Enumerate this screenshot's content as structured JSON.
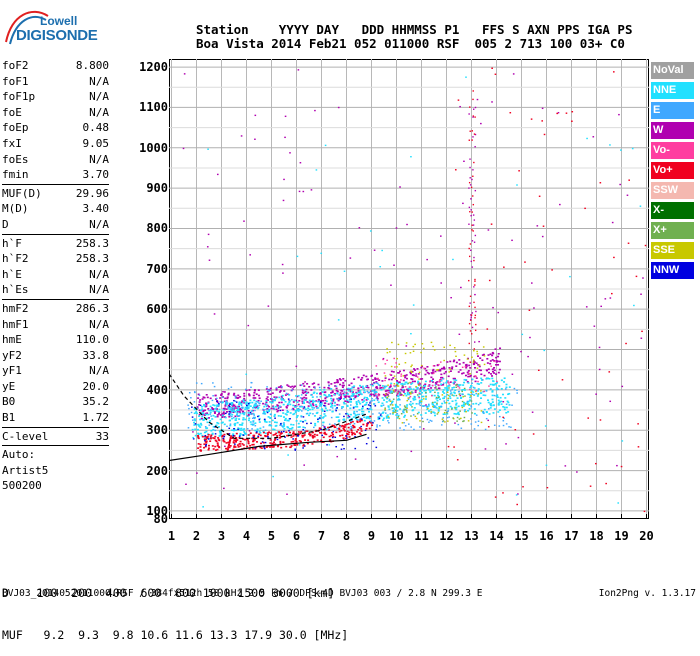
{
  "logo": {
    "top": "Lowell",
    "bottom": "DIGISONDE"
  },
  "header": {
    "line1": "Station    YYYY DAY   DDD HHMMSS P1   FFS S AXN PPS IGA PS",
    "line2": "Boa Vista 2014 Feb21 052 011000 RSF  005 2 713 100 03+ C0"
  },
  "params": {
    "group1": [
      {
        "label": "foF2",
        "value": "8.800"
      },
      {
        "label": "foF1",
        "value": "N/A"
      },
      {
        "label": "foF1p",
        "value": "N/A"
      },
      {
        "label": "foE",
        "value": "N/A"
      },
      {
        "label": "foEp",
        "value": "0.48"
      },
      {
        "label": "fxI",
        "value": "9.05"
      },
      {
        "label": "foEs",
        "value": "N/A"
      },
      {
        "label": "fmin",
        "value": "3.70"
      }
    ],
    "group2": [
      {
        "label": "MUF(D)",
        "value": "29.96"
      },
      {
        "label": "M(D)",
        "value": "3.40"
      },
      {
        "label": "D",
        "value": "N/A"
      }
    ],
    "group3": [
      {
        "label": "h`F",
        "value": "258.3"
      },
      {
        "label": "h`F2",
        "value": "258.3"
      },
      {
        "label": "h`E",
        "value": "N/A"
      },
      {
        "label": "h`Es",
        "value": "N/A"
      }
    ],
    "group4": [
      {
        "label": "hmF2",
        "value": "286.3"
      },
      {
        "label": "hmF1",
        "value": "N/A"
      },
      {
        "label": "hmE",
        "value": "110.0"
      },
      {
        "label": "yF2",
        "value": "33.8"
      },
      {
        "label": "yF1",
        "value": "N/A"
      },
      {
        "label": "yE",
        "value": "20.0"
      },
      {
        "label": "B0",
        "value": "35.2"
      },
      {
        "label": "B1",
        "value": "1.72"
      }
    ],
    "clevel": {
      "label": "C-level",
      "value": "33"
    },
    "auto_label": "Auto:",
    "artist": "Artist5",
    "artist_version": "500200"
  },
  "legend": [
    {
      "label": "NoVal",
      "color": "#a0a0a0"
    },
    {
      "label": "NNE",
      "color": "#22e0ff"
    },
    {
      "label": "E",
      "color": "#40a8ff"
    },
    {
      "label": "W",
      "color": "#b000b0"
    },
    {
      "label": "Vo-",
      "color": "#ff3ea0"
    },
    {
      "label": "Vo+",
      "color": "#f00020"
    },
    {
      "label": "SSW",
      "color": "#f4b8b0"
    },
    {
      "label": "X-",
      "color": "#007000"
    },
    {
      "label": "X+",
      "color": "#70b050"
    },
    {
      "label": "SSE",
      "color": "#c8c800"
    },
    {
      "label": "NNW",
      "color": "#0000e0"
    }
  ],
  "bottom": {
    "d_line": "D    100  200  400  600  800 1000 1500 3000 [km]",
    "muf_line": "MUF   9.2  9.3  9.8 10.6 11.6 13.3 17.9 30.0 [MHz]"
  },
  "footer": {
    "left": "BVJ03_2014052011000.RSF / 384fx512h 50 kHz 2.5 km / DPS-4D BVJ03 003 / 2.8 N 299.3 E",
    "right": "Ion2Png v. 1.3.17"
  },
  "chart_data": {
    "type": "scatter",
    "title": "",
    "xlabel": "",
    "ylabel": "",
    "x_ticks": [
      1,
      2,
      3,
      4,
      5,
      6,
      7,
      8,
      9,
      10,
      11,
      12,
      13,
      14,
      15,
      16,
      17,
      18,
      19,
      20
    ],
    "y_ticks": [
      80,
      100,
      200,
      300,
      400,
      500,
      600,
      700,
      800,
      900,
      1000,
      1100,
      1200
    ],
    "xlim": [
      0.9,
      20.1
    ],
    "ylim": [
      80,
      1220
    ],
    "grid": true,
    "legend_position": "right",
    "series": [
      {
        "name": "W",
        "values": [
          [
            2.0,
            360
          ],
          [
            4.0,
            370
          ],
          [
            6.0,
            385
          ],
          [
            8.0,
            400
          ],
          [
            10.0,
            420
          ],
          [
            12.0,
            440
          ],
          [
            13.5,
            460
          ],
          [
            14.2,
            480
          ]
        ]
      },
      {
        "name": "NNE",
        "values": [
          [
            1.8,
            320
          ],
          [
            3.0,
            330
          ],
          [
            5.0,
            340
          ],
          [
            7.0,
            360
          ],
          [
            9.0,
            370
          ],
          [
            11.0,
            380
          ],
          [
            13.0,
            385
          ],
          [
            14.5,
            390
          ]
        ]
      },
      {
        "name": "Vo+",
        "values": [
          [
            2.0,
            270
          ],
          [
            4.0,
            275
          ],
          [
            6.0,
            280
          ],
          [
            8.0,
            300
          ],
          [
            9.0,
            320
          ]
        ]
      }
    ],
    "trace_lines": [
      {
        "x": [
          0.9,
          2.5,
          4.5,
          6.5,
          8.0,
          8.8
        ],
        "y": [
          225,
          240,
          260,
          270,
          275,
          290
        ]
      },
      {
        "x": [
          0.9,
          1.5,
          2.5,
          3.5,
          5.0,
          7.0,
          8.8
        ],
        "y": [
          440,
          385,
          320,
          280,
          280,
          300,
          340
        ]
      }
    ]
  }
}
